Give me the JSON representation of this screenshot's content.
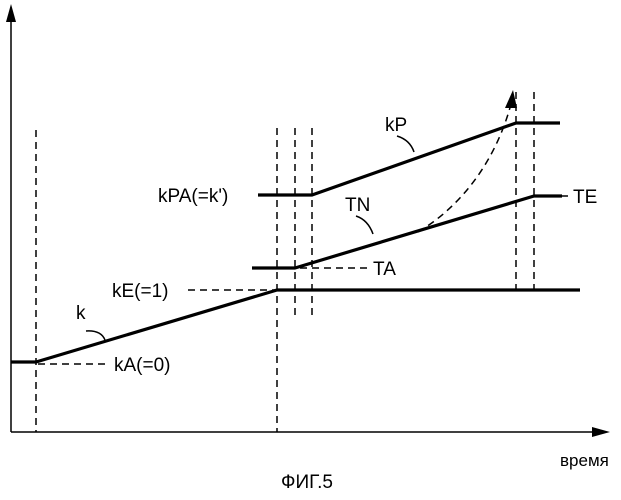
{
  "labels": {
    "k": "k",
    "kA": "kA(=0)",
    "kE": "kE(=1)",
    "kPA": "kPA(=k')",
    "kP": "kP",
    "TN": "TN",
    "TA": "TA",
    "TE": "TE"
  },
  "x_axis_label": "время",
  "caption": "ФИГ.5"
}
